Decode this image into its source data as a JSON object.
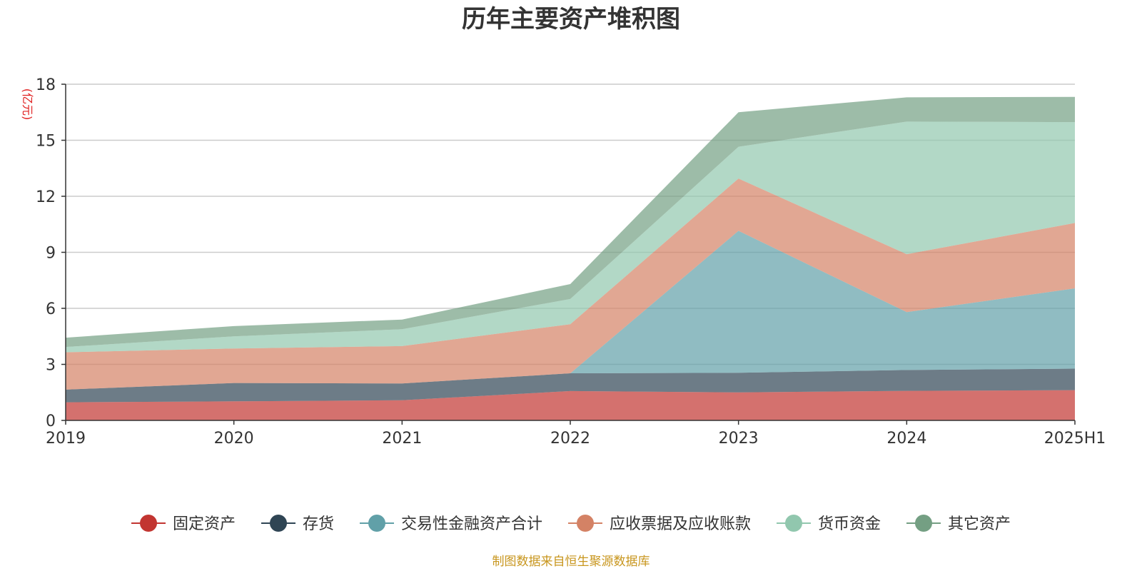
{
  "chart_data": {
    "type": "area",
    "stacked": true,
    "title": "历年主要资产堆积图",
    "unit_label": "(亿元)",
    "categories": [
      "2019",
      "2020",
      "2021",
      "2022",
      "2023",
      "2024",
      "2025H1"
    ],
    "ylim": [
      0,
      18
    ],
    "yticks": [
      "0",
      "3",
      "6",
      "9",
      "12",
      "15",
      "18"
    ],
    "grid": true,
    "legend_position": "bottom",
    "series": [
      {
        "name": "固定资产",
        "color": "#c23531",
        "values": [
          0.97,
          1.02,
          1.08,
          1.57,
          1.5,
          1.58,
          1.62
        ]
      },
      {
        "name": "存货",
        "color": "#2f4554",
        "values": [
          0.68,
          0.98,
          0.9,
          0.95,
          1.05,
          1.12,
          1.15
        ]
      },
      {
        "name": "交易性金融资产合计",
        "color": "#61a0a8",
        "values": [
          0.0,
          0.0,
          0.0,
          0.0,
          7.6,
          3.1,
          4.3
        ]
      },
      {
        "name": "应收票据及应收账款",
        "color": "#d48265",
        "values": [
          2.0,
          1.85,
          2.0,
          2.63,
          2.8,
          3.1,
          3.5
        ]
      },
      {
        "name": "货币资金",
        "color": "#91c7ae",
        "values": [
          0.28,
          0.65,
          0.9,
          1.35,
          1.7,
          7.1,
          5.4
        ]
      },
      {
        "name": "其它资产",
        "color": "#749f83",
        "values": [
          0.5,
          0.55,
          0.52,
          0.8,
          1.85,
          1.3,
          1.35
        ]
      }
    ],
    "source_note": "制图数据来自恒生聚源数据库"
  }
}
